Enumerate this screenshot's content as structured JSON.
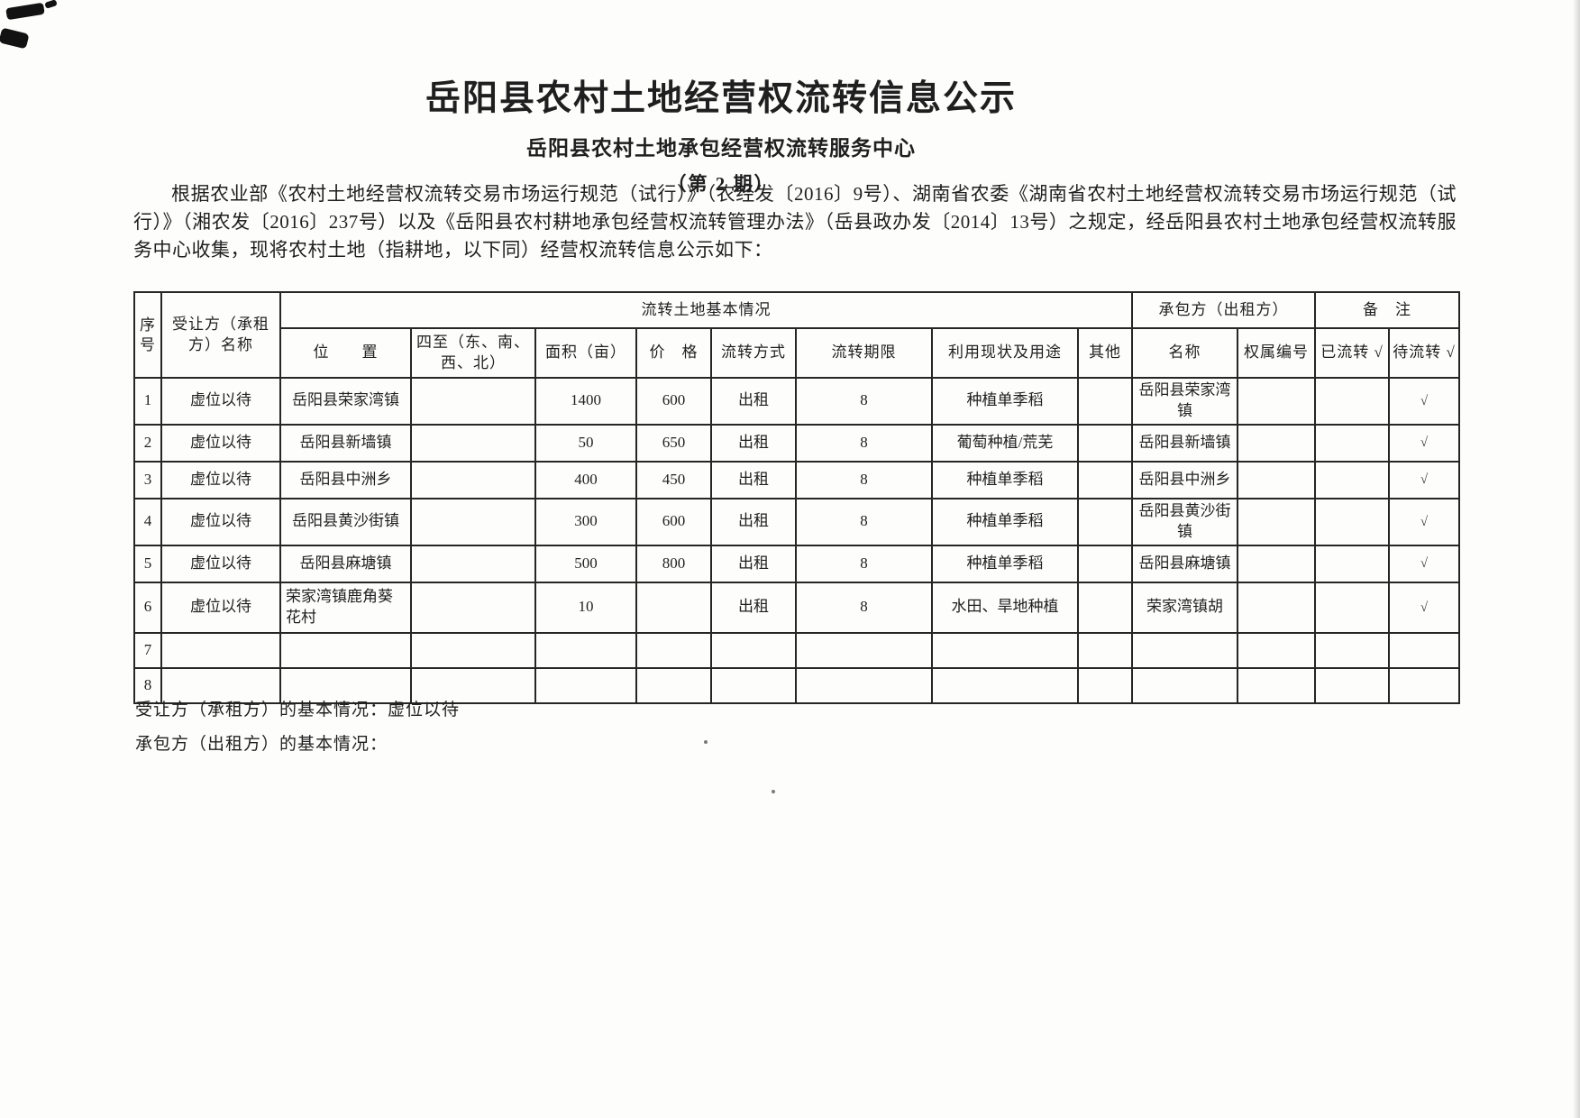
{
  "page": {
    "title": "岳阳县农村土地经营权流转信息公示",
    "subtitle": "岳阳县农村土地承包经营权流转服务中心",
    "issue": "（第 2 期）",
    "intro": "根据农业部《农村土地经营权流转交易市场运行规范（试行）》（农经发〔2016〕9号）、湖南省农委《湖南省农村土地经营权流转交易市场运行规范（试行）》（湘农发〔2016〕237号）以及《岳阳县农村耕地承包经营权流转管理办法》（岳县政办发〔2014〕13号）之规定，经岳阳县农村土地承包经营权流转服务中心收集，现将农村土地（指耕地，以下同）经营权流转信息公示如下：",
    "notes": {
      "transferee": "受让方（承租方）的基本情况：虚位以待",
      "contractor": "承包方（出租方）的基本情况："
    }
  },
  "table": {
    "group_headers": {
      "seq": "序号",
      "transferee": "受让方（承租方）名称",
      "land_info": "流转土地基本情况",
      "contractor": "承包方（出租方）",
      "remarks": "备　注"
    },
    "sub_headers": [
      "位　　置",
      "四至（东、南、西、北）",
      "面积（亩）",
      "价　格",
      "流转方式",
      "流转期限",
      "利用现状及用途",
      "其他",
      "名称",
      "权属编号",
      "已流转 √",
      "待流转 √"
    ],
    "rows": [
      {
        "cells": [
          "1",
          "虚位以待",
          "岳阳县荣家湾镇",
          "",
          "1400",
          "600",
          "出租",
          "8",
          "种植单季稻",
          "",
          "岳阳县荣家湾镇",
          "",
          "",
          "√"
        ]
      },
      {
        "cells": [
          "2",
          "虚位以待",
          "岳阳县新墙镇",
          "",
          "50",
          "650",
          "出租",
          "8",
          "葡萄种植/荒芜",
          "",
          "岳阳县新墙镇",
          "",
          "",
          "√"
        ]
      },
      {
        "cells": [
          "3",
          "虚位以待",
          "岳阳县中洲乡",
          "",
          "400",
          "450",
          "出租",
          "8",
          "种植单季稻",
          "",
          "岳阳县中洲乡",
          "",
          "",
          "√"
        ]
      },
      {
        "cells": [
          "4",
          "虚位以待",
          "岳阳县黄沙街镇",
          "",
          "300",
          "600",
          "出租",
          "8",
          "种植单季稻",
          "",
          "岳阳县黄沙街镇",
          "",
          "",
          "√"
        ]
      },
      {
        "cells": [
          "5",
          "虚位以待",
          "岳阳县麻塘镇",
          "",
          "500",
          "800",
          "出租",
          "8",
          "种植单季稻",
          "",
          "岳阳县麻塘镇",
          "",
          "",
          "√"
        ]
      },
      {
        "cells": [
          "6",
          "虚位以待",
          "荣家湾镇鹿角葵花村",
          "",
          "10",
          "",
          "出租",
          "8",
          "水田、旱地种植",
          "",
          "荣家湾镇胡",
          "",
          "",
          "√"
        ]
      },
      {
        "cells": [
          "7",
          "",
          "",
          "",
          "",
          "",
          "",
          "",
          "",
          "",
          "",
          "",
          "",
          ""
        ]
      },
      {
        "cells": [
          "8",
          "",
          "",
          "",
          "",
          "",
          "",
          "",
          "",
          "",
          "",
          "",
          "",
          ""
        ]
      }
    ]
  },
  "colors": {
    "paper": "#fdfdfc",
    "ink": "#1f1f1f",
    "table_border": "#262624"
  }
}
